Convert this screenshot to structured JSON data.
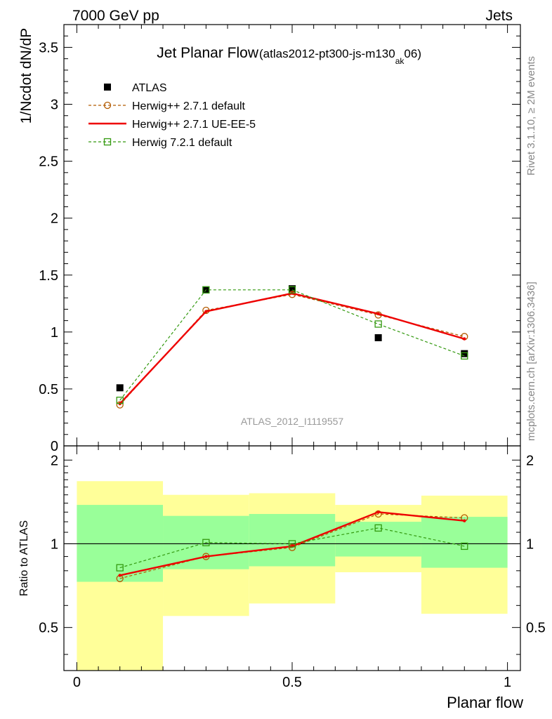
{
  "header": {
    "left": "7000 GeV pp",
    "right": "Jets"
  },
  "side_labels": {
    "rivet": "Rivet 3.1.10, ≥ 2M events",
    "mcplots": "mcplots.cern.ch [arXiv:1306.3436]"
  },
  "chart_data": [
    {
      "type": "line",
      "title": "Jet Planar Flow",
      "subtitle_main": "(atlas2012-pt300-js-m130",
      "subtitle_sub": "ak",
      "subtitle_tail": "06)",
      "watermark": "ATLAS_2012_I1119557",
      "xlabel": "",
      "ylabel": "1/Ncdot dN/dP",
      "xlim": [
        -0.03,
        1.03
      ],
      "ylim": [
        0,
        3.7
      ],
      "yticks": [
        0,
        0.5,
        1,
        1.5,
        2,
        2.5,
        3,
        3.5
      ],
      "ytick_labels": [
        "0",
        "0.5",
        "1",
        "1.5",
        "2",
        "2.5",
        "3",
        "3.5"
      ],
      "legend": [
        "ATLAS",
        "Herwig++ 2.7.1 default",
        "Herwig++ 2.7.1 UE-EE-5",
        "Herwig 7.2.1 default"
      ],
      "legend_placement": "top-left",
      "x": [
        0.1,
        0.3,
        0.5,
        0.7,
        0.9
      ],
      "series": [
        {
          "name": "ATLAS",
          "values": [
            0.51,
            1.37,
            1.38,
            0.95,
            0.81
          ],
          "color": "#000000",
          "style": "square"
        },
        {
          "name": "Herwig++ 2.7.1 default",
          "values": [
            0.36,
            1.19,
            1.33,
            1.15,
            0.96
          ],
          "color": "#b25a00",
          "style": "circle-dashed"
        },
        {
          "name": "Herwig++ 2.7.1 UE-EE-5",
          "values": [
            0.37,
            1.18,
            1.34,
            1.16,
            0.94
          ],
          "color": "#ee0000",
          "style": "solid"
        },
        {
          "name": "Herwig 7.2.1 default",
          "values": [
            0.4,
            1.37,
            1.37,
            1.07,
            0.79
          ],
          "color": "#33990f",
          "style": "square-dashed"
        }
      ]
    },
    {
      "type": "line",
      "xlabel": "Planar flow",
      "ylabel": "Ratio to ATLAS",
      "xlim": [
        -0.03,
        1.03
      ],
      "ylim": [
        0.35,
        2.25
      ],
      "log_y": true,
      "yticks": [
        0.5,
        1,
        2
      ],
      "ytick_labels": [
        "0.5",
        "1",
        "2"
      ],
      "xticks": [
        0,
        0.5,
        1
      ],
      "xtick_labels": [
        "0",
        "0.5",
        "1"
      ],
      "bins": [
        [
          0,
          0.2
        ],
        [
          0.2,
          0.4
        ],
        [
          0.4,
          0.6
        ],
        [
          0.6,
          0.8
        ],
        [
          0.8,
          1.0
        ]
      ],
      "band_yellow": [
        [
          0.3,
          1.68
        ],
        [
          0.55,
          1.5
        ],
        [
          0.61,
          1.52
        ],
        [
          0.79,
          1.38
        ],
        [
          0.56,
          1.49
        ]
      ],
      "band_green": [
        [
          0.73,
          1.38
        ],
        [
          0.81,
          1.26
        ],
        [
          0.83,
          1.28
        ],
        [
          0.9,
          1.2
        ],
        [
          0.82,
          1.25
        ]
      ],
      "x": [
        0.1,
        0.3,
        0.5,
        0.7,
        0.9
      ],
      "series": [
        {
          "name": "Herwig++ 2.7.1 default",
          "values": [
            0.75,
            0.9,
            0.97,
            1.28,
            1.24
          ],
          "color": "#b25a00",
          "style": "circle-dashed"
        },
        {
          "name": "Herwig++ 2.7.1 UE-EE-5",
          "values": [
            0.77,
            0.9,
            0.98,
            1.3,
            1.21
          ],
          "color": "#ee0000",
          "style": "solid"
        },
        {
          "name": "Herwig 7.2.1 default",
          "values": [
            0.82,
            1.01,
            1.0,
            1.14,
            0.98
          ],
          "color": "#33990f",
          "style": "square-dashed"
        }
      ]
    }
  ]
}
